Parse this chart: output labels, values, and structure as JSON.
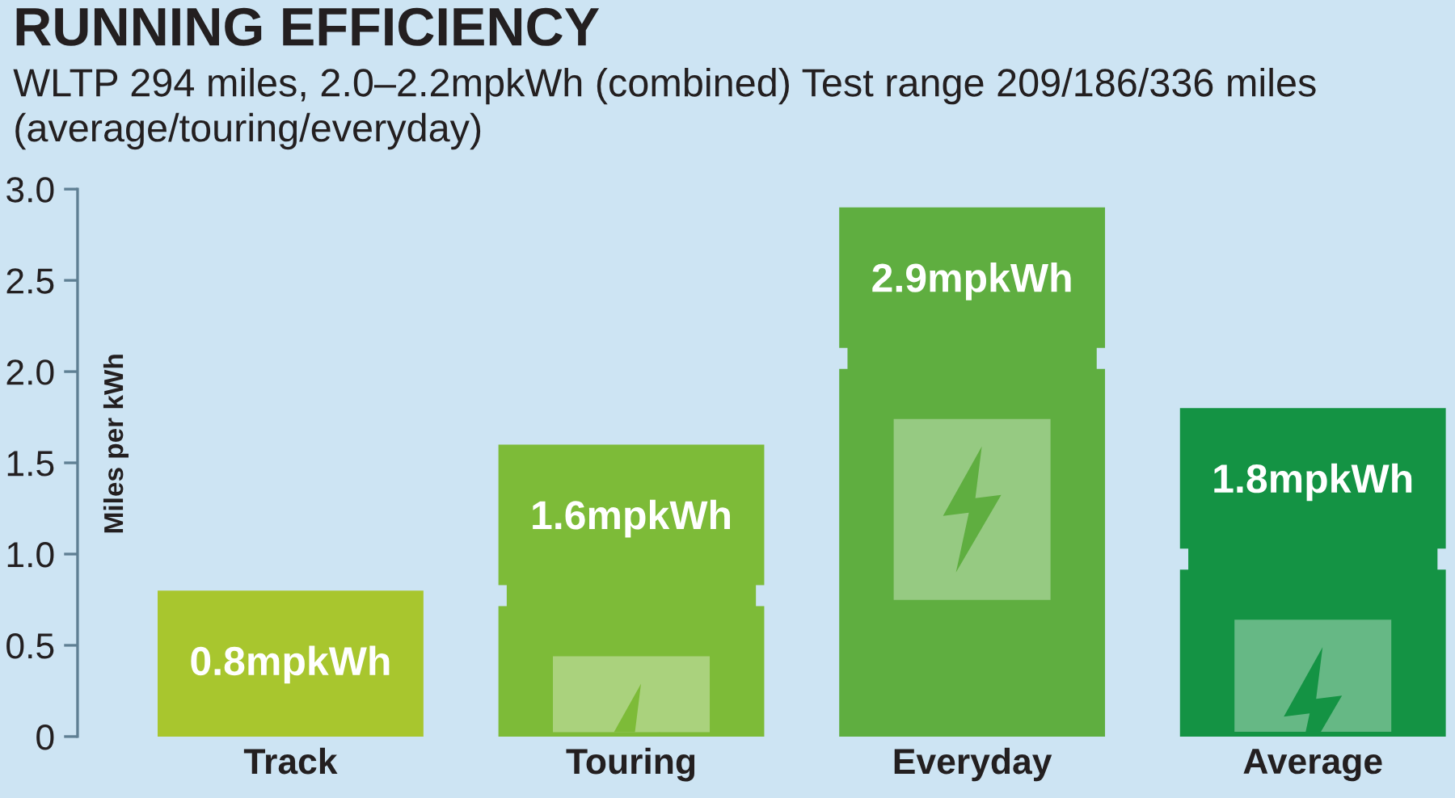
{
  "chart_data": {
    "type": "bar",
    "title": "RUNNING EFFICIENCY",
    "subtitle": "WLTP 294 miles, 2.0–2.2mpkWh (combined) Test range 209/186/336 miles (average/touring/everyday)",
    "ylabel": "Miles per kWh",
    "categories": [
      "Track",
      "Touring",
      "Everyday",
      "Average"
    ],
    "values": [
      0.8,
      1.6,
      2.9,
      1.8
    ],
    "colors": [
      "#a8c62e",
      "#7dbb38",
      "#5fae40",
      "#149344"
    ],
    "value_labels": [
      "0.8mpkWh",
      "1.6mpkWh",
      "2.9mpkWh",
      "1.8mpkWh"
    ],
    "ylim": [
      0,
      3
    ],
    "yticks": [
      0,
      0.5,
      {
        "value": 1,
        "label": "1.0"
      },
      1.5,
      {
        "value": 2,
        "label": "2.0"
      },
      2.5,
      {
        "value": 3,
        "label": "3.0"
      }
    ]
  }
}
